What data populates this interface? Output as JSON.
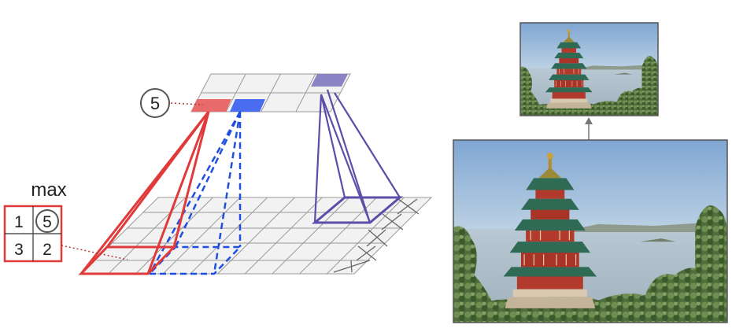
{
  "pooling": {
    "output_value": "5",
    "kernel_label": "max",
    "kernel_values": [
      "1",
      "5",
      "3",
      "2"
    ],
    "max_index": 1
  },
  "colors": {
    "red": "#e03a3a",
    "red_fill": "#e86a6a",
    "blue": "#1f4fe0",
    "blue_fill": "#4a6cf0",
    "purple": "#5a4ea8",
    "purple_fill": "#8a84c4",
    "grid_fill": "#f2f2f2",
    "grid_line": "#9a9a9a"
  },
  "photos": {
    "small": "pagoda-photo-downsampled",
    "large": "pagoda-photo-original"
  }
}
